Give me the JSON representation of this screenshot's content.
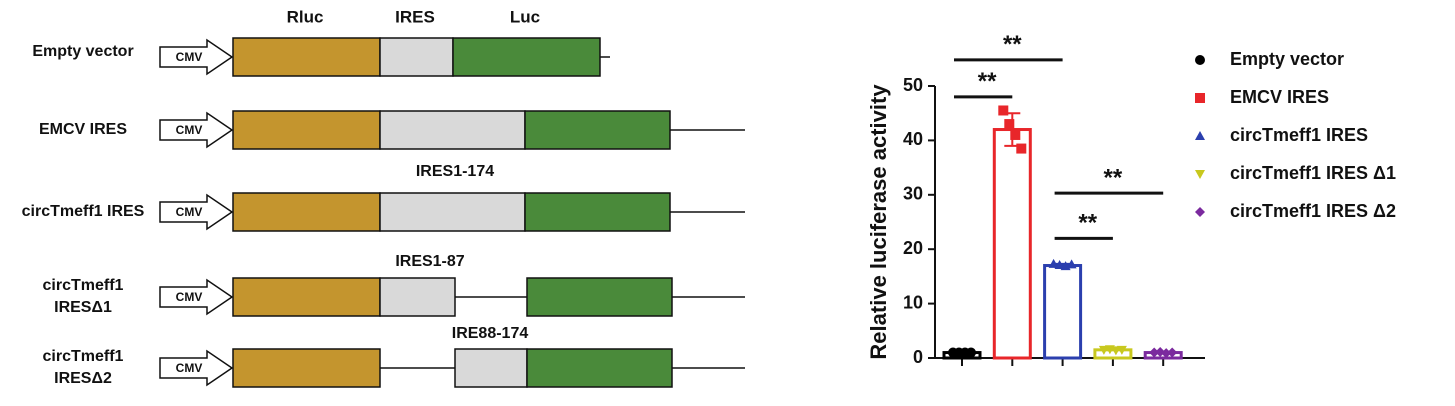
{
  "diagram": {
    "column_labels": [
      "Rluc",
      "IRES",
      "Luc"
    ],
    "constructs": [
      {
        "label_lines": [
          "Empty vector"
        ],
        "promoter": "CMV"
      },
      {
        "label_lines": [
          "EMCV IRES"
        ],
        "promoter": "CMV"
      },
      {
        "label_lines": [
          "circTmeff1  IRES"
        ],
        "promoter": "CMV",
        "annotation": "IRES1-174"
      },
      {
        "label_lines": [
          "circTmeff1",
          "IRESΔ1"
        ],
        "promoter": "CMV",
        "annotation": "IRES1-87"
      },
      {
        "label_lines": [
          "circTmeff1",
          "IRESΔ2"
        ],
        "promoter": "CMV",
        "annotation": "IRE88-174"
      }
    ]
  },
  "chart_data": {
    "type": "bar",
    "y_label": "Relative luciferase activity",
    "categories": [
      null,
      null,
      null,
      null,
      null
    ],
    "ylim": [
      0,
      50
    ],
    "yticks": [
      0,
      10,
      20,
      30,
      40,
      50
    ],
    "series": [
      {
        "name": "Empty vector",
        "color": "#000000",
        "marker": "circle",
        "values": [
          1,
          null,
          null,
          null,
          null
        ],
        "points": [
          1,
          1,
          1,
          1
        ]
      },
      {
        "name": "EMCV IRES",
        "color": "#e8262a",
        "marker": "square",
        "values": [
          null,
          42,
          null,
          null,
          null
        ],
        "errors": [
          null,
          3,
          null,
          null,
          null
        ],
        "points": [
          45.5,
          43,
          41,
          38.5
        ]
      },
      {
        "name": "circTmeff1 IRES",
        "color": "#2b3fae",
        "marker": "triangle-up",
        "values": [
          null,
          null,
          17,
          null,
          null
        ],
        "errors": [
          null,
          null,
          0.3,
          null,
          null
        ],
        "points": [
          17.3,
          17.1,
          16.9,
          17.2
        ]
      },
      {
        "name": "circTmeff1 IRES Δ1",
        "color": "#c8c81e",
        "marker": "triangle-down",
        "values": [
          null,
          null,
          null,
          1.5,
          null
        ],
        "points": [
          1.5,
          1.6,
          1.4,
          1.5
        ]
      },
      {
        "name": "circTmeff1 IRES Δ2",
        "color": "#7b2a9e",
        "marker": "diamond",
        "values": [
          null,
          null,
          null,
          null,
          1
        ],
        "points": [
          1,
          1.1,
          0.9,
          1
        ]
      }
    ],
    "significance": [
      {
        "from": 0,
        "to": 1,
        "y": 48,
        "label": "**"
      },
      {
        "from": 0,
        "to": 2,
        "y": 54.8,
        "label": "**"
      },
      {
        "from": 2,
        "to": 3,
        "y": 22,
        "label": "**"
      },
      {
        "from": 2,
        "to": 4,
        "y": 30.3,
        "label": "**"
      }
    ]
  }
}
